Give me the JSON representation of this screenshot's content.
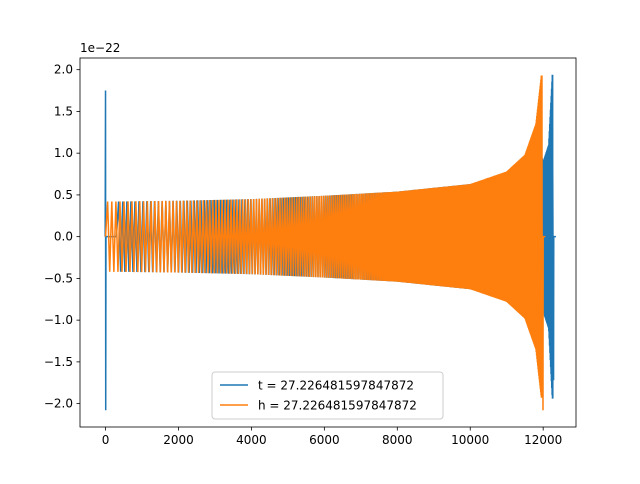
{
  "chart_data": {
    "type": "line",
    "title": "",
    "xlabel": "",
    "ylabel": "",
    "y_offset_label": "1e−22",
    "xlim": [
      -700,
      12900
    ],
    "ylim": [
      -2.28,
      2.14
    ],
    "x_ticks": [
      0,
      2000,
      4000,
      6000,
      8000,
      10000,
      12000
    ],
    "x_tick_labels": [
      "0",
      "2000",
      "4000",
      "6000",
      "8000",
      "10000",
      "12000"
    ],
    "y_ticks": [
      -2.0,
      -1.5,
      -1.0,
      -0.5,
      0.0,
      0.5,
      1.0,
      1.5,
      2.0
    ],
    "y_tick_labels": [
      "−2.0",
      "−1.5",
      "−1.0",
      "−0.5",
      "0.0",
      "0.5",
      "1.0",
      "1.5",
      "2.0"
    ],
    "grid": false,
    "legend_position": "lower-center",
    "series": [
      {
        "name": "t = 27.226481597847872",
        "color": "#1f77b4",
        "spike_start": {
          "x": 0,
          "max": 1.75,
          "min": -2.08
        },
        "flat_until": 300,
        "envelope": [
          {
            "x": 300,
            "amp": 0.42
          },
          {
            "x": 2000,
            "amp": 0.43
          },
          {
            "x": 4000,
            "amp": 0.45
          },
          {
            "x": 6000,
            "amp": 0.49
          },
          {
            "x": 8000,
            "amp": 0.54
          },
          {
            "x": 10000,
            "amp": 0.63
          },
          {
            "x": 11000,
            "amp": 0.73
          },
          {
            "x": 11600,
            "amp": 0.88
          },
          {
            "x": 11900,
            "amp": 1.05
          },
          {
            "x": 12000,
            "amp": 0.9
          },
          {
            "x": 12150,
            "amp": 1.1
          },
          {
            "x": 12250,
            "amp": 1.94
          }
        ],
        "end_min": -1.72,
        "end_x": 12290
      },
      {
        "name": "h = 27.226481597847872",
        "color": "#ff7f0e",
        "flat_until": 0,
        "envelope": [
          {
            "x": 0,
            "amp": 0.42
          },
          {
            "x": 2000,
            "amp": 0.43
          },
          {
            "x": 4000,
            "amp": 0.45
          },
          {
            "x": 6000,
            "amp": 0.49
          },
          {
            "x": 8000,
            "amp": 0.54
          },
          {
            "x": 10000,
            "amp": 0.63
          },
          {
            "x": 11000,
            "amp": 0.78
          },
          {
            "x": 11500,
            "amp": 0.98
          },
          {
            "x": 11800,
            "amp": 1.35
          },
          {
            "x": 11950,
            "amp": 1.93
          }
        ],
        "end_min": -2.08,
        "end_x": 12000
      }
    ]
  }
}
